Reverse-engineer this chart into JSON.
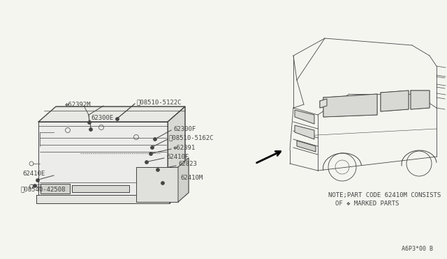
{
  "bg_color": "#f5f5f0",
  "note_text1": "NOTE;PART CODE 62410M CONSISTS",
  "note_text2": "OF ❖ MARKED PARTS",
  "diagram_id": "A6P3*00 B",
  "line_color": "#444444",
  "text_color": "#444444"
}
